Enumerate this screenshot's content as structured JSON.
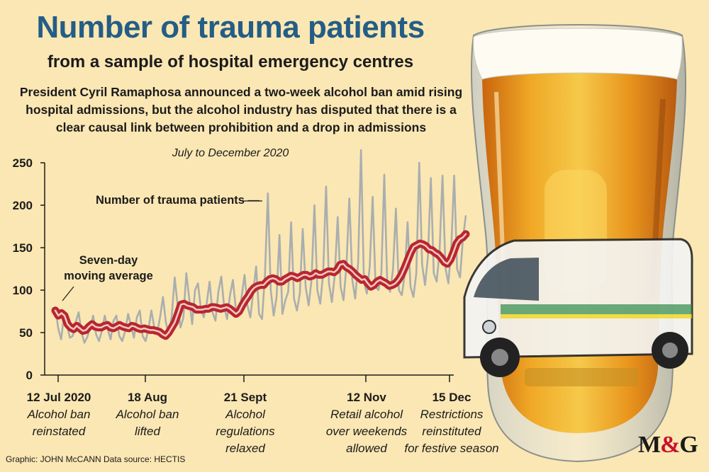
{
  "title": "Number of trauma patients",
  "subtitle": "from a sample of hospital emergency centres",
  "description": "President Cyril Ramaphosa announced a two-week alcohol ban amid rising hospital admissions, but the alcohol industry has disputed that there is a clear causal link between prohibition and a drop in admissions",
  "period": "July to December 2020",
  "annotations": {
    "daily_series": "Number of trauma patients —",
    "moving_average_line1": "Seven-day",
    "moving_average_line2": "moving average"
  },
  "events": [
    {
      "date": "12 Jul 2020",
      "label_line1": "Alcohol ban",
      "label_line2": "reinstated",
      "label_line3": ""
    },
    {
      "date": "18 Aug",
      "label_line1": "Alcohol ban",
      "label_line2": "lifted",
      "label_line3": ""
    },
    {
      "date": "21 Sept",
      "label_line1": "Alcohol",
      "label_line2": "regulations",
      "label_line3": "relaxed"
    },
    {
      "date": "12 Nov",
      "label_line1": "Retail alcohol",
      "label_line2": "over weekends",
      "label_line3": "allowed"
    },
    {
      "date": "15 Dec",
      "label_line1": "Restrictions",
      "label_line2": "reinstituted",
      "label_line3": "for festive season"
    }
  ],
  "footer": "Graphic: JOHN McCANN  Data source: HECTIS",
  "logo": {
    "m": "M",
    "amp": "&",
    "g": "G"
  },
  "colors": {
    "background": "#fbe7b3",
    "title": "#245d86",
    "daily_line": "#a9aeaf",
    "moving_average": "#b8262f",
    "moving_average_inner": "#f3c8c3",
    "beer": "#e89a1d",
    "logo_accent": "#c8102e"
  },
  "chart_data": {
    "type": "line",
    "x_start": "2020-07-12",
    "x_end": "2020-12-31",
    "ylim": [
      0,
      250
    ],
    "yticks": [
      0,
      50,
      100,
      150,
      200,
      250
    ],
    "xtick_dates": [
      "12 Jul 2020",
      "18 Aug",
      "21 Sept",
      "12 Nov",
      "15 Dec"
    ],
    "series": [
      {
        "name": "Number of trauma patients",
        "style": "daily",
        "values": [
          80,
          55,
          42,
          70,
          60,
          44,
          46,
          62,
          74,
          50,
          38,
          45,
          56,
          70,
          48,
          40,
          52,
          70,
          54,
          42,
          64,
          70,
          46,
          40,
          52,
          72,
          58,
          44,
          68,
          76,
          46,
          40,
          54,
          76,
          56,
          50,
          68,
          92,
          62,
          48,
          70,
          115,
          82,
          56,
          68,
          120,
          90,
          60,
          100,
          108,
          78,
          68,
          84,
          110,
          74,
          64,
          98,
          116,
          80,
          66,
          94,
          112,
          78,
          70,
          92,
          118,
          82,
          68,
          98,
          128,
          72,
          66,
          118,
          214,
          100,
          70,
          92,
          165,
          72,
          88,
          98,
          180,
          90,
          76,
          96,
          172,
          104,
          82,
          112,
          200,
          100,
          84,
          120,
          222,
          108,
          86,
          118,
          186,
          104,
          88,
          128,
          208,
          112,
          90,
          132,
          265,
          110,
          96,
          128,
          210,
          104,
          100,
          120,
          236,
          110,
          98,
          124,
          196,
          100,
          94,
          118,
          180,
          104,
          92,
          120,
          250,
          130,
          106,
          140,
          232,
          120,
          110,
          146,
          235,
          126,
          108,
          150,
          235,
          125,
          115,
          160,
          188
        ]
      },
      {
        "name": "Seven-day moving average",
        "style": "smoothed",
        "values": [
          76,
          70,
          73,
          70,
          60,
          56,
          54,
          58,
          55,
          52,
          53,
          57,
          60,
          57,
          56,
          56,
          58,
          59,
          56,
          55,
          57,
          59,
          57,
          56,
          55,
          58,
          57,
          55,
          54,
          55,
          54,
          53,
          53,
          52,
          51,
          48,
          46,
          50,
          56,
          62,
          72,
          83,
          84,
          82,
          81,
          80,
          77,
          77,
          77,
          78,
          78,
          80,
          80,
          79,
          78,
          79,
          80,
          78,
          75,
          72,
          75,
          82,
          88,
          93,
          99,
          103,
          105,
          106,
          106,
          110,
          113,
          114,
          113,
          110,
          110,
          113,
          115,
          117,
          116,
          114,
          116,
          118,
          118,
          116,
          117,
          120,
          118,
          118,
          120,
          122,
          122,
          121,
          124,
          130,
          131,
          127,
          125,
          122,
          118,
          115,
          112,
          113,
          108,
          104,
          106,
          110,
          112,
          110,
          108,
          105,
          106,
          108,
          112,
          118,
          126,
          135,
          144,
          151,
          153,
          155,
          154,
          152,
          148,
          147,
          144,
          142,
          138,
          133,
          131,
          136,
          145,
          155,
          160,
          162,
          166
        ]
      }
    ]
  }
}
